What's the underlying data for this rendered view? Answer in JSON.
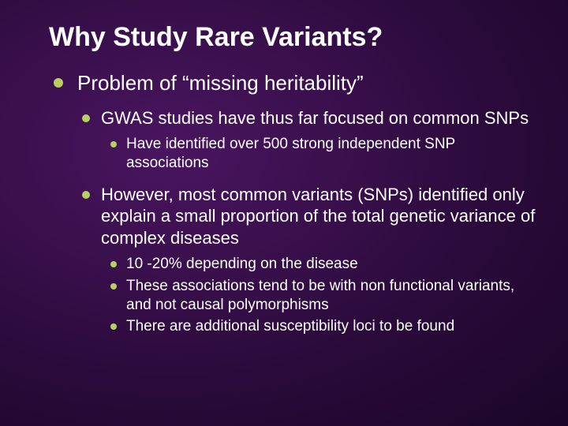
{
  "slide": {
    "title": "Why Study Rare Variants?",
    "background_colors": {
      "center": "#4a1560",
      "mid": "#2a0a3a",
      "edge": "#1a0628"
    },
    "bullet_color": "#b8d060",
    "text_color": "#ffffff",
    "font_family": "Arial",
    "title_fontsize_pt": 34,
    "level_fontsize_pt": [
      26,
      22,
      19,
      19
    ],
    "items": [
      {
        "text": "Problem of “missing heritability”",
        "items": [
          {
            "text": "GWAS studies have thus far focused on common SNPs",
            "items": [
              {
                "text": "Have identified over 500 strong independent SNP associations"
              }
            ]
          },
          {
            "text": "However, most common variants (SNPs) identified only explain a small proportion of the total genetic variance of complex diseases",
            "items": [
              {
                "text": "10 -20% depending on the disease"
              },
              {
                "text": "These associations tend to be with non functional variants, and not causal polymorphisms"
              },
              {
                "text": "There are additional susceptibility loci to be found"
              }
            ]
          }
        ]
      }
    ]
  }
}
